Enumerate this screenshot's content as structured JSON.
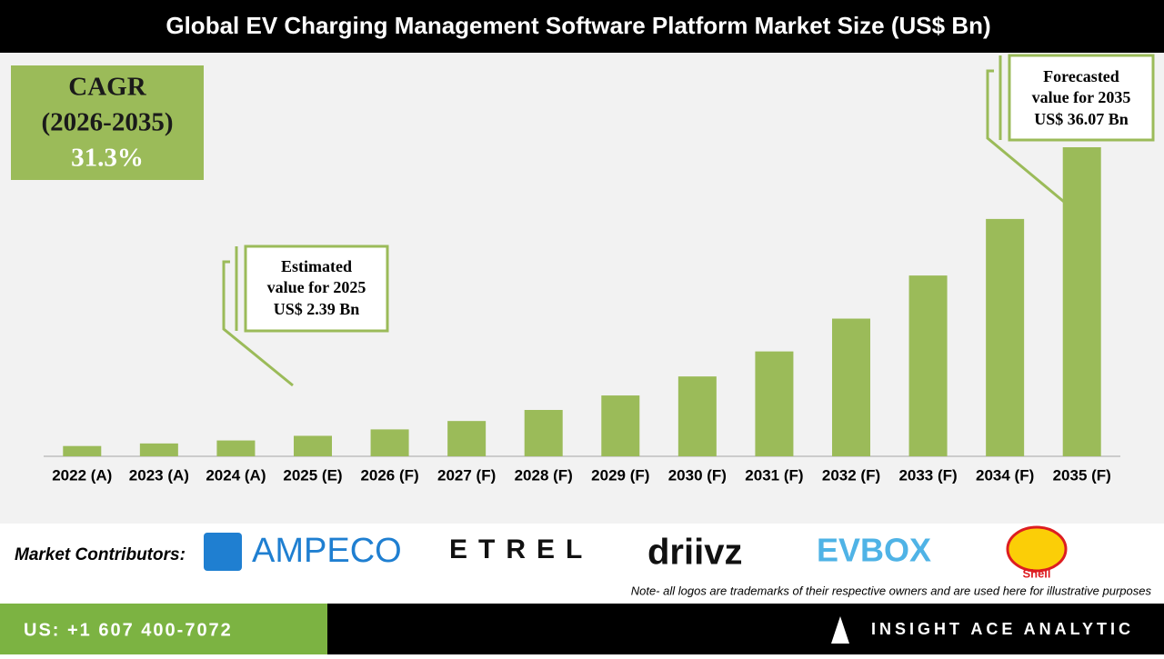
{
  "header": {
    "title": "Global EV Charging Management Software Platform Market Size (US$ Bn)"
  },
  "chart_data": {
    "type": "bar",
    "categories": [
      "2022 (A)",
      "2023 (A)",
      "2024 (A)",
      "2025 (E)",
      "2026 (F)",
      "2027 (F)",
      "2028 (F)",
      "2029 (F)",
      "2030 (F)",
      "2031 (F)",
      "2032 (F)",
      "2033 (F)",
      "2034 (F)",
      "2035 (F)"
    ],
    "values": [
      1.2,
      1.5,
      1.85,
      2.39,
      3.14,
      4.12,
      5.41,
      7.1,
      9.32,
      12.24,
      16.07,
      21.1,
      27.7,
      36.07
    ],
    "color": "#9bbb59"
  },
  "cagr": {
    "label": "CAGR",
    "period": "(2026-2035)",
    "value": "31.3%"
  },
  "callouts": [
    {
      "lines": [
        "Estimated",
        "value for 2025",
        "US$ 2.39 Bn"
      ]
    },
    {
      "lines": [
        "Forecasted",
        "value for 2035",
        "US$ 36.07 Bn"
      ]
    }
  ],
  "contributors": {
    "label": "Market Contributors:",
    "logos": [
      "AMPECO",
      "ETREL",
      "driivz",
      "EVBOX",
      "Shell"
    ]
  },
  "note": "Note- all logos are trademarks of their respective owners and are used here for illustrative purposes",
  "footer": {
    "phone": "US: +1 607 400-7072",
    "brand": "INSIGHT ACE ANALYTIC"
  }
}
